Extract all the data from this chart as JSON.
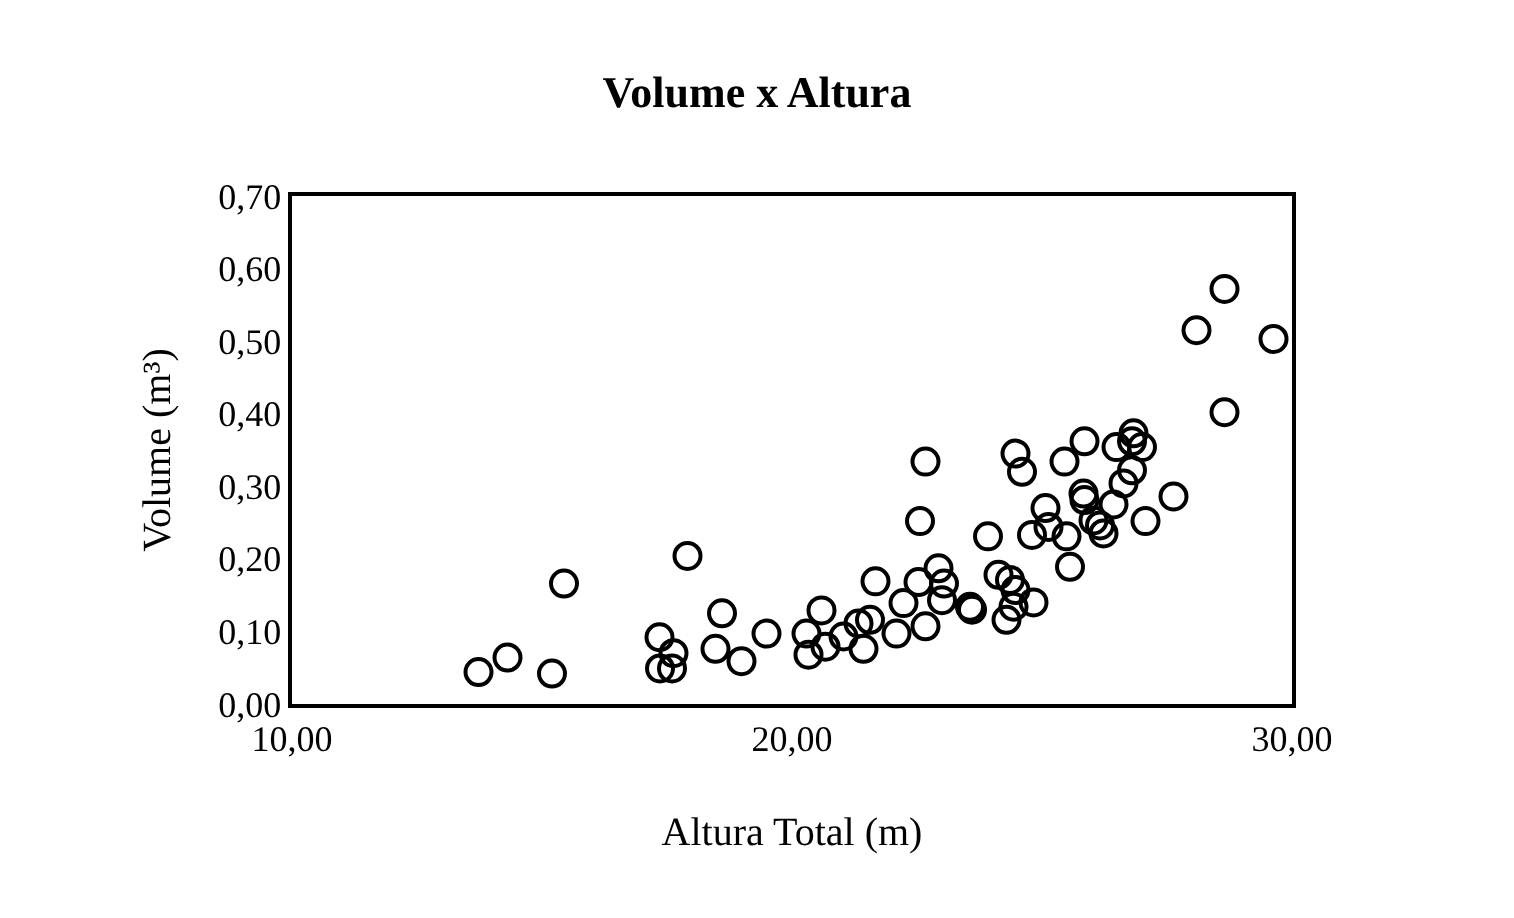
{
  "chart_data": {
    "type": "scatter",
    "title": "Volume x Altura",
    "xlabel": "Altura Total (m)",
    "ylabel": "Volume (m³)",
    "x": [
      13.73,
      14.31,
      15.2,
      15.44,
      17.35,
      17.36,
      17.6,
      17.63,
      17.91,
      18.6,
      18.47,
      18.99,
      19.49,
      20.29,
      20.33,
      20.59,
      20.67,
      21.03,
      21.33,
      21.56,
      21.43,
      21.67,
      22.09,
      22.23,
      22.53,
      22.67,
      22.93,
      23.04,
      23.0,
      22.56,
      22.67,
      23.56,
      23.6,
      23.92,
      24.13,
      24.29,
      24.36,
      24.43,
      24.47,
      24.83,
      24.8,
      25.07,
      25.13,
      25.49,
      25.56,
      24.47,
      24.6,
      25.45,
      25.85,
      25.83,
      25.85,
      26.03,
      26.16,
      26.23,
      26.43,
      26.49,
      26.63,
      26.8,
      26.83,
      26.8,
      27.0,
      27.07,
      27.63,
      28.09,
      28.65,
      29.63,
      28.65
    ],
    "values": [
      0.044,
      0.064,
      0.042,
      0.166,
      0.092,
      0.049,
      0.049,
      0.07,
      0.204,
      0.125,
      0.076,
      0.059,
      0.097,
      0.097,
      0.068,
      0.129,
      0.079,
      0.093,
      0.111,
      0.116,
      0.076,
      0.169,
      0.097,
      0.139,
      0.168,
      0.107,
      0.187,
      0.166,
      0.143,
      0.252,
      0.334,
      0.134,
      0.13,
      0.231,
      0.178,
      0.116,
      0.171,
      0.134,
      0.157,
      0.14,
      0.233,
      0.27,
      0.244,
      0.231,
      0.189,
      0.345,
      0.32,
      0.334,
      0.362,
      0.29,
      0.281,
      0.253,
      0.246,
      0.235,
      0.275,
      0.354,
      0.304,
      0.322,
      0.373,
      0.362,
      0.354,
      0.252,
      0.286,
      0.515,
      0.572,
      0.503,
      0.402
    ],
    "color": "#000000",
    "marker": "circle",
    "xlim": [
      10,
      30
    ],
    "xticks": [
      {
        "value": 10,
        "label": "10,00"
      },
      {
        "value": 20,
        "label": "20,00"
      },
      {
        "value": 30,
        "label": "30,00"
      }
    ],
    "ylim": [
      0,
      0.7
    ],
    "yticks": [
      {
        "value": 0,
        "label": "0,00"
      },
      {
        "value": 0.1,
        "label": "0,10"
      },
      {
        "value": 0.2,
        "label": "0,20"
      },
      {
        "value": 0.3,
        "label": "0,30"
      },
      {
        "value": 0.4,
        "label": "0,40"
      },
      {
        "value": 0.5,
        "label": "0,50"
      },
      {
        "value": 0.6,
        "label": "0,60"
      },
      {
        "value": 0.7,
        "label": "0,70"
      }
    ]
  }
}
